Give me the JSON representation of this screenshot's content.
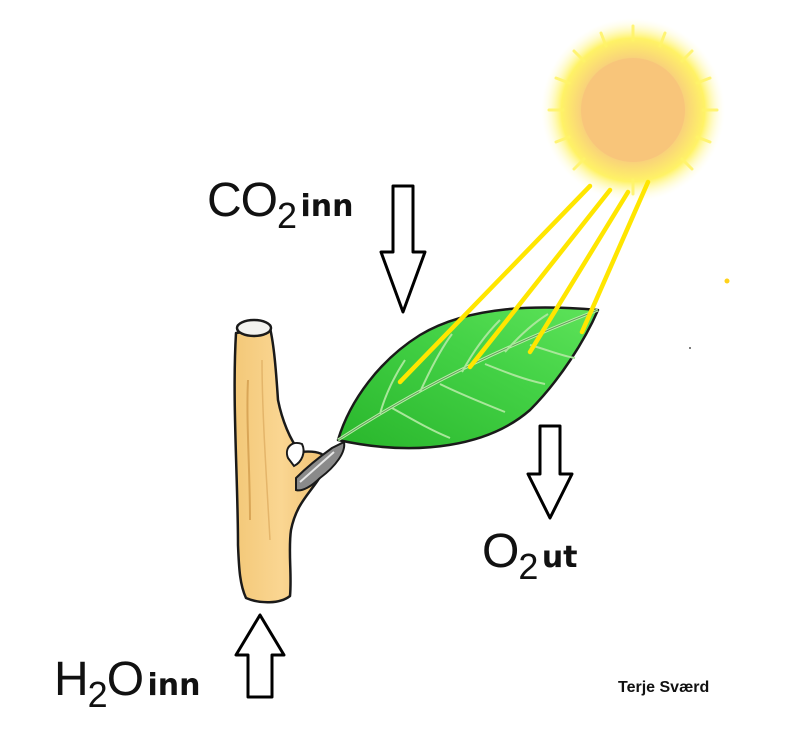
{
  "labels": {
    "co2": {
      "base": "CO",
      "sub": "2",
      "word": "inn"
    },
    "o2": {
      "base": "O",
      "sub": "2",
      "word": "ut"
    },
    "h2o": {
      "base": "H",
      "sub": "2",
      "tail": "O",
      "word": "inn"
    }
  },
  "credit": "Terje Sværd",
  "colors": {
    "sun_core": "#f7c97e",
    "sun_glow": "#fff46a",
    "rays": "#ffe600",
    "leaf": "#3fcf3f",
    "leaf_dark": "#1f8f1f",
    "stem": "#f7d48a",
    "outline": "#000000"
  }
}
